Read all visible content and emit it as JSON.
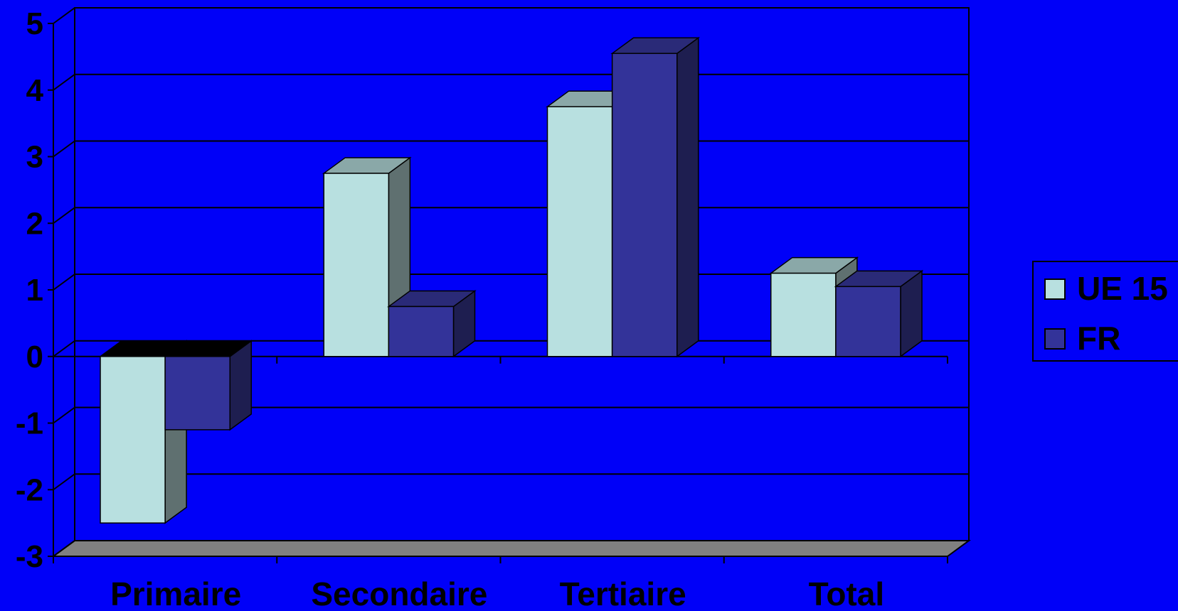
{
  "colors": {
    "background": "#0000f8",
    "series_ue15_front": "#b8e0e0",
    "series_ue15_top": "#8aa8a8",
    "series_ue15_side": "#5f7070",
    "series_fr_front": "#333399",
    "series_fr_top": "#2a2a78",
    "series_fr_side": "#1e1e50",
    "floor": "#808080"
  },
  "chart_data": {
    "type": "bar",
    "style": "3d-clustered-column",
    "categories": [
      "Primaire",
      "Secondaire",
      "Tertiaire",
      "Total"
    ],
    "series": [
      {
        "name": "UE 15",
        "values": [
          -2.5,
          2.75,
          3.75,
          1.25
        ]
      },
      {
        "name": "FR",
        "values": [
          -1.1,
          0.75,
          4.55,
          1.05
        ]
      }
    ],
    "ylim": [
      -3,
      5
    ],
    "yticks": [
      "-3",
      "-2",
      "-1",
      "0",
      "1",
      "2",
      "3",
      "4",
      "5"
    ],
    "grid": true,
    "legend_position": "right"
  }
}
